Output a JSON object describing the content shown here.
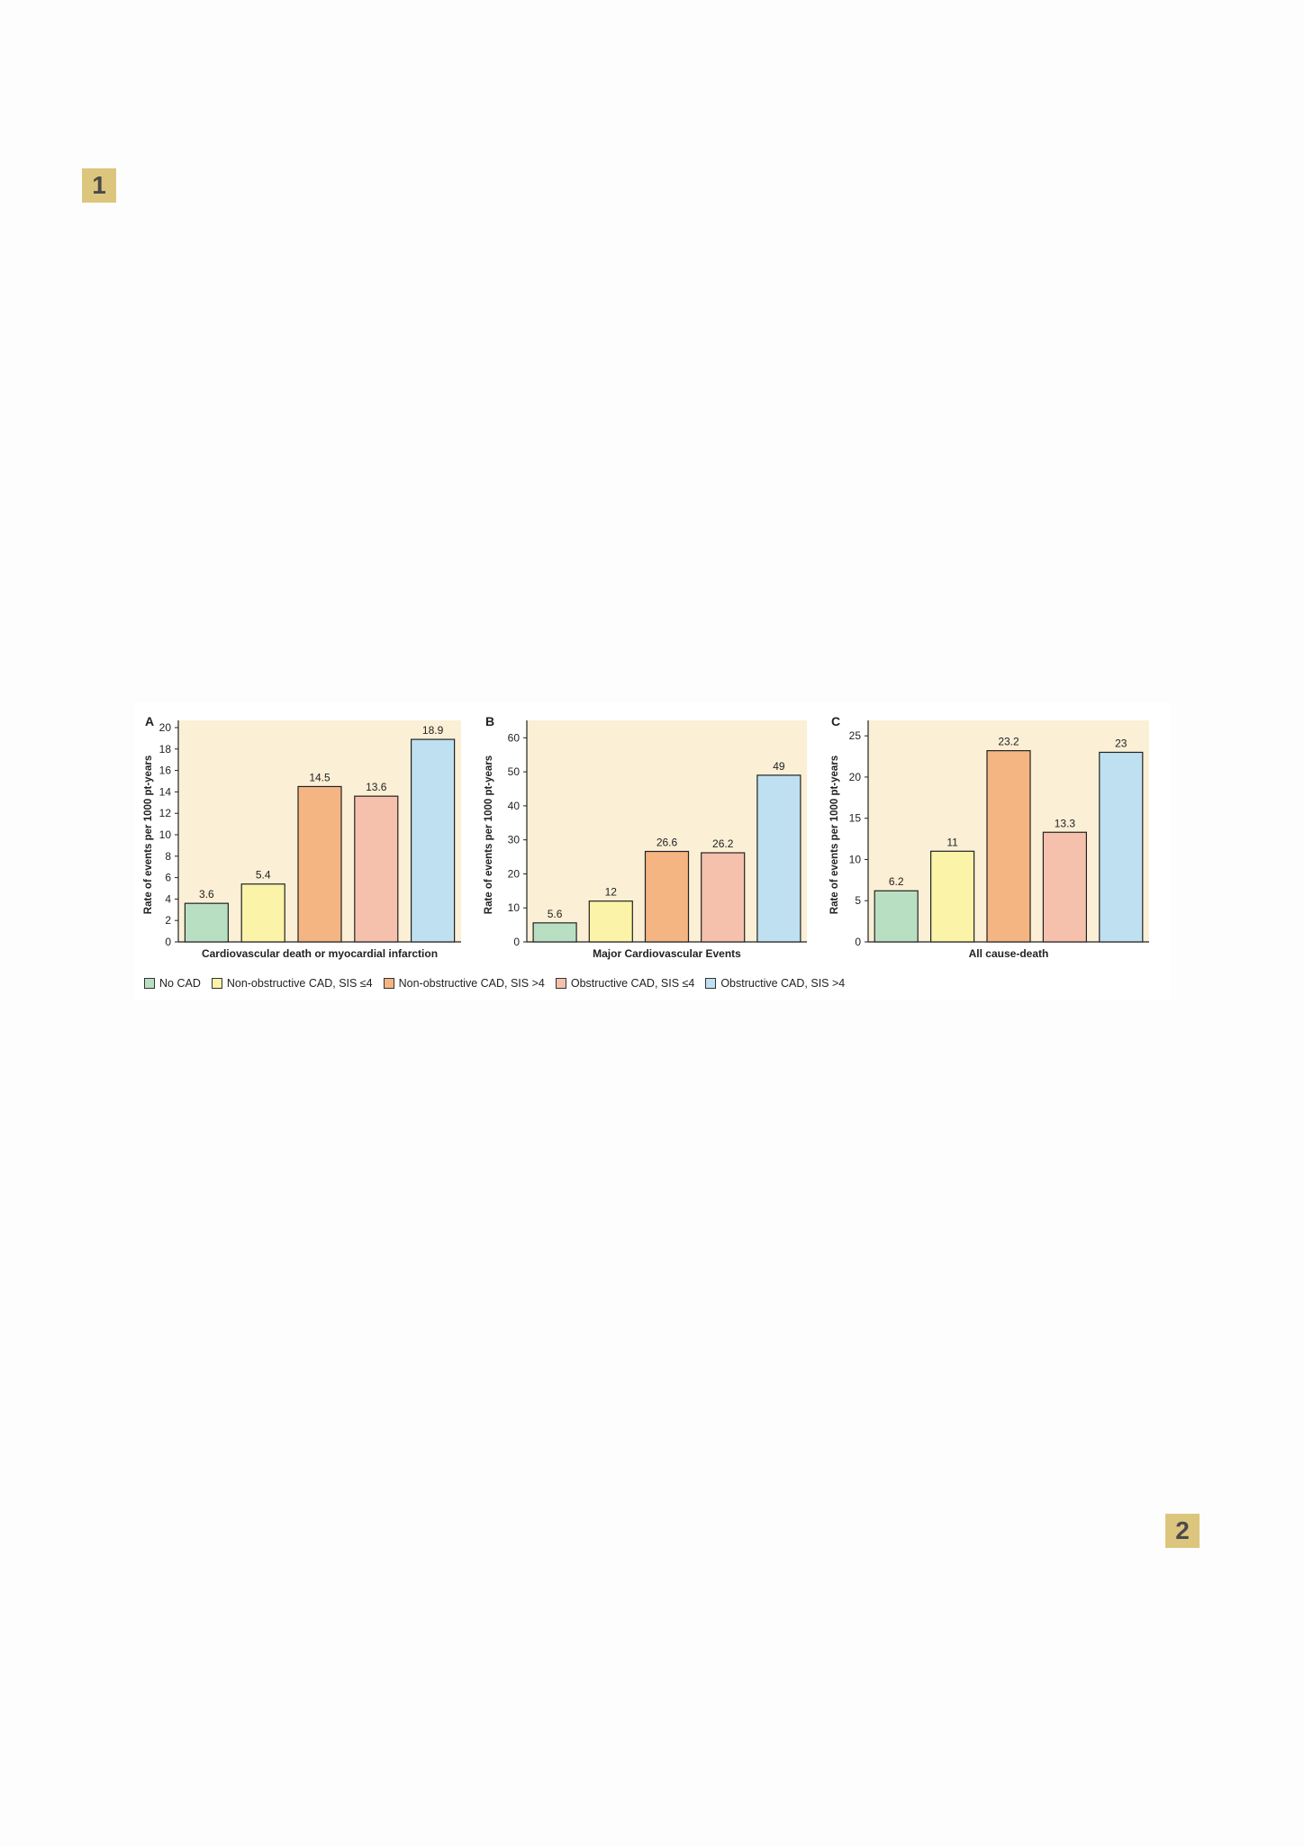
{
  "page": {
    "badges": [
      "1",
      "2"
    ]
  },
  "colors": {
    "panel_background": "#fbefd6",
    "bar_stroke": "#222222",
    "series": [
      "#b9dfc3",
      "#fbf3a7",
      "#f5b583",
      "#f5c1ad",
      "#bfe0f0"
    ]
  },
  "legend": [
    "No CAD",
    "Non-obstructive CAD, SIS ≤4",
    "Non-obstructive CAD, SIS >4",
    "Obstructive CAD, SIS ≤4",
    "Obstructive CAD, SIS >4"
  ],
  "chart_data": [
    {
      "type": "bar",
      "panel_label": "A",
      "xlabel": "Cardiovascular death or myocardial infarction",
      "ylabel": "Rate of events per 1000 pt-years",
      "ylim": [
        0,
        20
      ],
      "yticks": [
        0,
        2,
        4,
        6,
        8,
        10,
        12,
        14,
        16,
        18,
        20
      ],
      "categories": [
        "No CAD",
        "Non-obstructive CAD, SIS ≤4",
        "Non-obstructive CAD, SIS >4",
        "Obstructive CAD, SIS ≤4",
        "Obstructive CAD, SIS >4"
      ],
      "values": [
        3.6,
        5.4,
        14.5,
        13.6,
        18.9
      ],
      "value_labels": [
        "3.6",
        "5.4",
        "14.5",
        "13.6",
        "18.9"
      ],
      "grid": false
    },
    {
      "type": "bar",
      "panel_label": "B",
      "xlabel": "Major Cardiovascular Events",
      "ylabel": "Rate of events per 1000 pt-years",
      "ylim": [
        0,
        63
      ],
      "yticks": [
        0,
        10,
        20,
        30,
        40,
        50,
        60
      ],
      "categories": [
        "No CAD",
        "Non-obstructive CAD, SIS ≤4",
        "Non-obstructive CAD, SIS >4",
        "Obstructive CAD, SIS ≤4",
        "Obstructive CAD, SIS >4"
      ],
      "values": [
        5.6,
        12,
        26.6,
        26.2,
        49
      ],
      "value_labels": [
        "5.6",
        "12",
        "26.6",
        "26.2",
        "49"
      ],
      "grid": false
    },
    {
      "type": "bar",
      "panel_label": "C",
      "xlabel": "All cause-death",
      "ylabel": "Rate of events per 1000 pt-years",
      "ylim": [
        0,
        26
      ],
      "yticks": [
        0,
        5,
        10,
        15,
        20,
        25
      ],
      "categories": [
        "No CAD",
        "Non-obstructive CAD, SIS ≤4",
        "Non-obstructive CAD, SIS >4",
        "Obstructive CAD, SIS ≤4",
        "Obstructive CAD, SIS >4"
      ],
      "values": [
        6.2,
        11,
        23.2,
        13.3,
        23
      ],
      "value_labels": [
        "6.2",
        "11",
        "23.2",
        "13.3",
        "23"
      ],
      "grid": false
    }
  ]
}
